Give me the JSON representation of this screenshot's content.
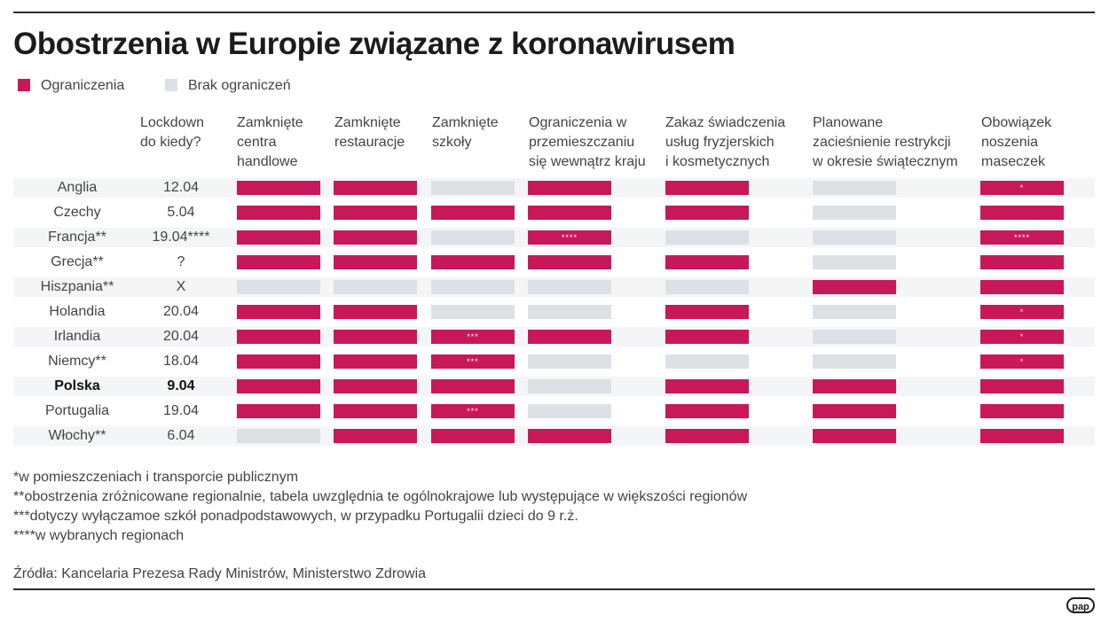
{
  "title": "Obostrzenia w Europie związane z koronawirusem",
  "legend": [
    {
      "label": "Ograniczenia",
      "color": "#c8185a"
    },
    {
      "label": "Brak ograniczeń",
      "color": "#dde1e6"
    }
  ],
  "headers": {
    "lockdown": [
      "Lockdown",
      "do kiedy?"
    ],
    "columns": [
      [
        "Zamknięte",
        "centra",
        "handlowe"
      ],
      [
        "Zamknięte",
        "restauracje"
      ],
      [
        "Zamknięte",
        "szkoły"
      ],
      [
        "Ograniczenia w",
        "przemieszczaniu",
        "się wewnątrz kraju"
      ],
      [
        "Zakaz świadczenia",
        "usług fryzjerskich",
        "i kosmetycznych"
      ],
      [
        "Planowane",
        "zacieśnienie restrykcji",
        "w okresie świątecznym"
      ],
      [
        "Obowiązek",
        "noszenia",
        "maseczek"
      ]
    ]
  },
  "chart_data": {
    "type": "table",
    "title": "Obostrzenia w Europie związane z koronawirusem",
    "columns": [
      "Lockdown do kiedy?",
      "Zamknięte centra handlowe",
      "Zamknięte restauracje",
      "Zamknięte szkoły",
      "Ograniczenia w przemieszczaniu się wewnątrz kraju",
      "Zakaz świadczenia usług fryzjerskich i kosmetycznych",
      "Planowane zacieśnienie restrykcji w okresie świątecznym",
      "Obowiązek noszenia maseczek"
    ],
    "rows": [
      {
        "country": "Anglia",
        "date": "12.04",
        "bold": false,
        "values": [
          1,
          1,
          0,
          1,
          1,
          0,
          1
        ],
        "marks": [
          "",
          "",
          "",
          "",
          "",
          "",
          "*"
        ]
      },
      {
        "country": "Czechy",
        "date": "5.04",
        "bold": false,
        "values": [
          1,
          1,
          1,
          1,
          1,
          0,
          1
        ],
        "marks": [
          "",
          "",
          "",
          "",
          "",
          "",
          ""
        ]
      },
      {
        "country": "Francja**",
        "date": "19.04****",
        "bold": false,
        "values": [
          1,
          1,
          0,
          1,
          0,
          0,
          1
        ],
        "marks": [
          "",
          "",
          "",
          "****",
          "",
          "",
          "****"
        ]
      },
      {
        "country": "Grecja**",
        "date": "?",
        "bold": false,
        "values": [
          1,
          1,
          1,
          1,
          1,
          0,
          1
        ],
        "marks": [
          "",
          "",
          "",
          "",
          "",
          "",
          ""
        ]
      },
      {
        "country": "Hiszpania**",
        "date": "X",
        "bold": false,
        "values": [
          0,
          0,
          0,
          0,
          0,
          1,
          1
        ],
        "marks": [
          "",
          "",
          "",
          "",
          "",
          "",
          ""
        ]
      },
      {
        "country": "Holandia",
        "date": "20.04",
        "bold": false,
        "values": [
          1,
          1,
          0,
          0,
          1,
          0,
          1
        ],
        "marks": [
          "",
          "",
          "",
          "",
          "",
          "",
          "*"
        ]
      },
      {
        "country": "Irlandia",
        "date": "20.04",
        "bold": false,
        "values": [
          1,
          1,
          1,
          1,
          1,
          0,
          1
        ],
        "marks": [
          "",
          "",
          "***",
          "",
          "",
          "",
          "*"
        ]
      },
      {
        "country": "Niemcy**",
        "date": "18.04",
        "bold": false,
        "values": [
          1,
          1,
          1,
          0,
          0,
          0,
          1
        ],
        "marks": [
          "",
          "",
          "***",
          "",
          "",
          "",
          "*"
        ]
      },
      {
        "country": "Polska",
        "date": "9.04",
        "bold": true,
        "values": [
          1,
          1,
          1,
          0,
          1,
          1,
          1
        ],
        "marks": [
          "",
          "",
          "",
          "",
          "",
          "",
          ""
        ]
      },
      {
        "country": "Portugalia",
        "date": "19.04",
        "bold": false,
        "values": [
          1,
          1,
          1,
          0,
          1,
          1,
          1
        ],
        "marks": [
          "",
          "",
          "***",
          "",
          "",
          "",
          ""
        ]
      },
      {
        "country": "Włochy**",
        "date": "6.04",
        "bold": false,
        "values": [
          0,
          1,
          1,
          1,
          1,
          1,
          1
        ],
        "marks": [
          "",
          "",
          "",
          "",
          "",
          "",
          ""
        ]
      }
    ]
  },
  "footnotes": [
    "*w pomieszczeniach i transporcie publicznym",
    "**obostrzenia zróżnicowane regionalnie, tabela uwzględnia te ogólnokrajowe lub występujące w większości regionów",
    "***dotyczy wyłączamoe szkół ponadpodstawowych, w przypadku Portugalii dzieci do 9 r.ż.",
    "****w wybranych regionach"
  ],
  "source": "Źródła: Kancelaria Prezesa Rady Ministrów, Ministerstwo Zdrowia",
  "logo": "pap"
}
